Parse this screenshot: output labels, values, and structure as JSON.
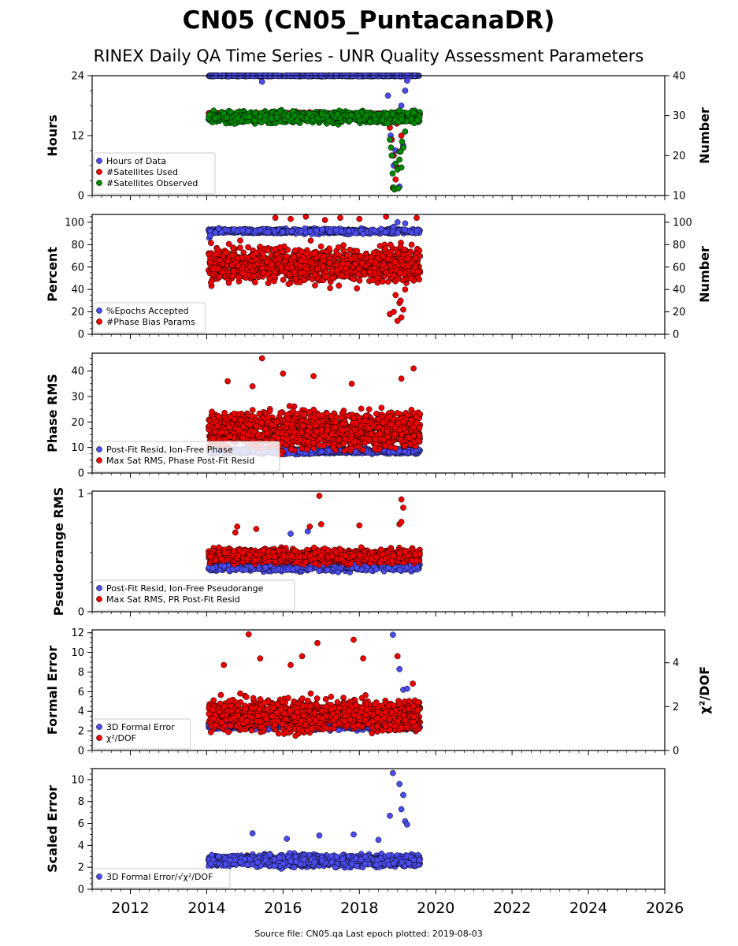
{
  "title": "CN05 (CN05_PuntacanaDR)",
  "subtitle": "RINEX Daily QA Time Series - UNR Quality Assessment Parameters",
  "source_note": "Source file: CN05.qa Last epoch plotted: 2019-08-03",
  "colors": {
    "blue": "#4b4bef",
    "red": "#ee0000",
    "green": "#008800"
  },
  "chart_data": [
    {
      "type": "scatter",
      "ylabel": "Hours",
      "ylabel_right": "Number",
      "xlim": [
        2011.0,
        2026.0
      ],
      "ylim": [
        0,
        24
      ],
      "ylim_right": [
        10,
        40
      ],
      "yticks": [
        0,
        12,
        24
      ],
      "yticks_right": [
        10,
        20,
        30,
        40
      ],
      "legend_position": "lower-left",
      "series": [
        {
          "name": "Hours of Data",
          "color": "blue",
          "axis": "left",
          "x_range": [
            2014.05,
            2019.59
          ],
          "typical": 24,
          "spread": 0.1,
          "count": 820,
          "points": [
            [
              2015.45,
              22.8
            ],
            [
              2018.75,
              20.0
            ],
            [
              2018.82,
              12.0
            ],
            [
              2018.85,
              8.0
            ],
            [
              2018.9,
              6.0
            ],
            [
              2018.95,
              9.0
            ],
            [
              2019.0,
              15.0
            ],
            [
              2019.1,
              18.0
            ],
            [
              2019.2,
              21.0
            ],
            [
              2018.88,
              1.5
            ],
            [
              2019.05,
              1.8
            ],
            [
              2019.15,
              10.0
            ],
            [
              2018.95,
              16.5
            ],
            [
              2019.25,
              23.0
            ]
          ]
        },
        {
          "name": "#Satellites Used",
          "color": "red",
          "axis": "right",
          "x_range": [
            2014.05,
            2019.59
          ],
          "typical": 30.3,
          "spread": 0.4,
          "count": 600,
          "points": [
            [
              2018.8,
              27.0
            ],
            [
              2018.85,
              24.0
            ],
            [
              2018.9,
              20.0
            ],
            [
              2018.95,
              14.0
            ],
            [
              2019.0,
              17.0
            ],
            [
              2019.05,
              21.0
            ],
            [
              2019.1,
              25.0
            ],
            [
              2019.15,
              22.0
            ],
            [
              2018.88,
              12.0
            ],
            [
              2018.98,
              28.0
            ]
          ]
        },
        {
          "name": "#Satellites Observed",
          "color": "green",
          "axis": "right",
          "x_range": [
            2014.05,
            2019.59
          ],
          "typical": 29.6,
          "spread": 1.2,
          "count": 850,
          "points": [
            [
              2018.75,
              28.0
            ],
            [
              2018.8,
              24.0
            ],
            [
              2018.83,
              22.0
            ],
            [
              2018.85,
              20.0
            ],
            [
              2018.87,
              15.5
            ],
            [
              2018.9,
              12.0
            ],
            [
              2018.95,
              18.0
            ],
            [
              2019.0,
              16.5
            ],
            [
              2019.05,
              19.0
            ],
            [
              2019.08,
              21.0
            ],
            [
              2019.1,
              17.0
            ],
            [
              2019.15,
              22.0
            ],
            [
              2019.2,
              26.0
            ],
            [
              2018.92,
              11.5
            ],
            [
              2019.02,
              11.8
            ],
            [
              2019.12,
              23.5
            ]
          ]
        }
      ]
    },
    {
      "type": "scatter",
      "ylabel": "Percent",
      "ylabel_right": "Number",
      "xlim": [
        2011.0,
        2026.0
      ],
      "ylim": [
        0,
        107
      ],
      "ylim_right": [
        0,
        107
      ],
      "yticks": [
        0,
        20,
        40,
        60,
        80,
        100
      ],
      "yticks_right": [
        0,
        20,
        40,
        60,
        80,
        100
      ],
      "legend_position": "lower-left",
      "series": [
        {
          "name": "%Epochs Accepted",
          "color": "blue",
          "axis": "left",
          "x_range": [
            2014.05,
            2019.59
          ],
          "typical": 92,
          "spread": 1.8,
          "count": 700,
          "points": [
            [
              2014.07,
              86.0
            ],
            [
              2014.1,
              88.0
            ],
            [
              2018.9,
              96.0
            ],
            [
              2019.0,
              100.0
            ],
            [
              2019.2,
              99.0
            ]
          ]
        },
        {
          "name": "#Phase Bias Params",
          "color": "red",
          "axis": "right",
          "x_range": [
            2014.05,
            2019.59
          ],
          "typical": 62,
          "spread": 13,
          "count": 1100,
          "points": [
            [
              2018.8,
              18.0
            ],
            [
              2018.9,
              20.0
            ],
            [
              2019.0,
              12.0
            ],
            [
              2019.05,
              28.0
            ],
            [
              2019.1,
              15.0
            ],
            [
              2019.15,
              22.0
            ],
            [
              2019.2,
              40.0
            ],
            [
              2018.95,
              35.0
            ],
            [
              2019.08,
              30.0
            ],
            [
              2015.8,
              104.0
            ],
            [
              2016.2,
              103.0
            ],
            [
              2016.6,
              105.0
            ],
            [
              2017.1,
              102.0
            ],
            [
              2017.5,
              104.0
            ],
            [
              2018.0,
              103.0
            ],
            [
              2018.7,
              105.0
            ],
            [
              2019.5,
              104.0
            ]
          ]
        }
      ]
    },
    {
      "type": "scatter",
      "ylabel": "Phase RMS",
      "xlim": [
        2011.0,
        2026.0
      ],
      "ylim": [
        0,
        47
      ],
      "yticks": [
        0,
        10,
        20,
        30,
        40
      ],
      "legend_position": "lower-left",
      "series": [
        {
          "name": "Post-Fit Resid, Ion-Free Phase",
          "color": "blue",
          "axis": "left",
          "x_range": [
            2014.05,
            2019.59
          ],
          "typical": 8.5,
          "spread": 0.8,
          "count": 800,
          "points": []
        },
        {
          "name": "Max Sat RMS, Phase Post-Fit Resid",
          "color": "red",
          "axis": "left",
          "x_range": [
            2014.05,
            2019.59
          ],
          "typical": 17,
          "spread": 6,
          "count": 1300,
          "points": [
            [
              2015.45,
              45.0
            ],
            [
              2019.42,
              41.0
            ],
            [
              2014.55,
              36.0
            ],
            [
              2016.8,
              38.0
            ],
            [
              2016.0,
              39.0
            ],
            [
              2017.8,
              35.0
            ],
            [
              2019.1,
              37.0
            ],
            [
              2015.2,
              34.0
            ]
          ]
        }
      ]
    },
    {
      "type": "scatter",
      "ylabel": "Pseudorange RMS",
      "xlim": [
        2011.0,
        2026.0
      ],
      "ylim": [
        0,
        1.02
      ],
      "yticks": [
        0,
        1
      ],
      "legend_position": "lower-left",
      "series": [
        {
          "name": "Post-Fit Resid, Ion-Free Pseudorange",
          "color": "blue",
          "axis": "left",
          "x_range": [
            2014.05,
            2019.59
          ],
          "typical": 0.38,
          "spread": 0.03,
          "count": 800,
          "points": [
            [
              2016.2,
              0.66
            ],
            [
              2016.65,
              0.68
            ]
          ]
        },
        {
          "name": "Max Sat RMS, PR Post-Fit Resid",
          "color": "red",
          "axis": "left",
          "x_range": [
            2014.05,
            2019.59
          ],
          "typical": 0.47,
          "spread": 0.05,
          "count": 1200,
          "points": [
            [
              2016.95,
              0.98
            ],
            [
              2019.1,
              0.95
            ],
            [
              2014.75,
              0.67
            ],
            [
              2014.8,
              0.72
            ],
            [
              2015.3,
              0.7
            ],
            [
              2016.7,
              0.72
            ],
            [
              2017.0,
              0.74
            ],
            [
              2018.0,
              0.73
            ],
            [
              2019.15,
              0.88
            ],
            [
              2019.05,
              0.74
            ],
            [
              2019.1,
              0.76
            ]
          ]
        }
      ]
    },
    {
      "type": "scatter",
      "ylabel": "Formal Error",
      "ylabel_right": "χ²/DOF",
      "xlim": [
        2011.0,
        2026.0
      ],
      "ylim": [
        0,
        12.3
      ],
      "ylim_right": [
        0,
        5.5
      ],
      "yticks": [
        0,
        2,
        4,
        6,
        8,
        10,
        12
      ],
      "yticks_right": [
        0,
        2,
        4
      ],
      "legend_position": "lower-left",
      "series": [
        {
          "name": "3D Formal Error",
          "color": "blue",
          "axis": "left",
          "x_range": [
            2014.05,
            2019.59
          ],
          "typical": 2.5,
          "spread": 0.3,
          "count": 700,
          "points": [
            [
              2018.88,
              11.8
            ],
            [
              2019.05,
              8.3
            ],
            [
              2019.15,
              6.2
            ],
            [
              2019.25,
              6.3
            ]
          ]
        },
        {
          "name": "χ²/DOF",
          "color": "red",
          "axis": "right",
          "x_range": [
            2014.05,
            2019.59
          ],
          "typical": 1.6,
          "spread": 0.6,
          "count": 1200,
          "points": [
            [
              2015.1,
              5.3
            ],
            [
              2017.85,
              5.05
            ],
            [
              2016.9,
              4.9
            ],
            [
              2019.0,
              4.3
            ],
            [
              2015.4,
              4.2
            ],
            [
              2016.5,
              4.3
            ],
            [
              2016.2,
              3.9
            ],
            [
              2018.1,
              4.2
            ],
            [
              2014.45,
              3.9
            ],
            [
              2019.4,
              3.05
            ]
          ]
        }
      ]
    },
    {
      "type": "scatter",
      "ylabel": "Scaled Error",
      "xlim": [
        2011.0,
        2026.0
      ],
      "ylim": [
        0,
        11
      ],
      "yticks": [
        0,
        2,
        4,
        6,
        8,
        10
      ],
      "xticks": [
        2012,
        2014,
        2016,
        2018,
        2020,
        2022,
        2024,
        2026
      ],
      "legend_position": "lower-left",
      "series": [
        {
          "name": "3D Formal Error/√χ²/DOF",
          "color": "blue",
          "axis": "left",
          "x_range": [
            2014.05,
            2019.59
          ],
          "typical": 2.6,
          "spread": 0.45,
          "count": 1200,
          "points": [
            [
              2018.88,
              10.6
            ],
            [
              2019.05,
              9.6
            ],
            [
              2019.15,
              8.6
            ],
            [
              2019.1,
              7.3
            ],
            [
              2018.8,
              6.7
            ],
            [
              2019.2,
              6.2
            ],
            [
              2019.25,
              5.9
            ],
            [
              2015.2,
              5.1
            ],
            [
              2016.95,
              4.9
            ],
            [
              2017.85,
              5.0
            ],
            [
              2016.1,
              4.6
            ],
            [
              2018.5,
              4.5
            ]
          ]
        }
      ]
    }
  ]
}
